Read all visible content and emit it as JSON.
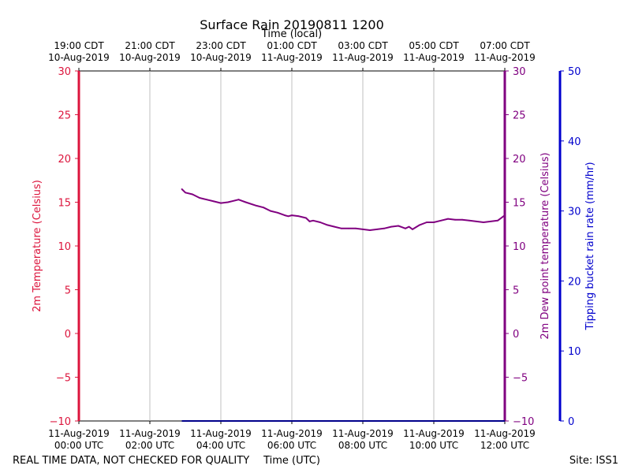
{
  "chart_data": {
    "type": "line",
    "title": "Surface Rain 20190811 1200",
    "top_axis_label": "Time (local)",
    "xlabel": "Time (UTC)",
    "ylabel_left": "2m Temperature (Celsius)",
    "ylabel_right1": "2m Dew point temperature (Celsius)",
    "ylabel_right2": "Tipping bucket rain rate (mm/hr)",
    "xlim_hours": [
      0,
      12
    ],
    "ylim_temp": [
      -10,
      30
    ],
    "ylim_rain": [
      0,
      50
    ],
    "temp_ticks": [
      "30",
      "25",
      "20",
      "15",
      "10",
      "5",
      "0",
      "−5",
      "−10"
    ],
    "rain_ticks": [
      "50",
      "40",
      "30",
      "20",
      "10",
      "0"
    ],
    "bottom_ticks": [
      {
        "line1": "11-Aug-2019",
        "line2": "00:00 UTC"
      },
      {
        "line1": "11-Aug-2019",
        "line2": "02:00 UTC"
      },
      {
        "line1": "11-Aug-2019",
        "line2": "04:00 UTC"
      },
      {
        "line1": "11-Aug-2019",
        "line2": "06:00 UTC"
      },
      {
        "line1": "11-Aug-2019",
        "line2": "08:00 UTC"
      },
      {
        "line1": "11-Aug-2019",
        "line2": "10:00 UTC"
      },
      {
        "line1": "11-Aug-2019",
        "line2": "12:00 UTC"
      }
    ],
    "top_ticks": [
      {
        "line1": "19:00 CDT",
        "line2": "10-Aug-2019"
      },
      {
        "line1": "21:00 CDT",
        "line2": "10-Aug-2019"
      },
      {
        "line1": "23:00 CDT",
        "line2": "10-Aug-2019"
      },
      {
        "line1": "01:00 CDT",
        "line2": "11-Aug-2019"
      },
      {
        "line1": "03:00 CDT",
        "line2": "11-Aug-2019"
      },
      {
        "line1": "05:00 CDT",
        "line2": "11-Aug-2019"
      },
      {
        "line1": "07:00 CDT",
        "line2": "11-Aug-2019"
      }
    ],
    "series": [
      {
        "name": "2m Dew point temperature",
        "color": "#800080",
        "x": [
          2.9,
          3.0,
          3.2,
          3.4,
          3.5,
          3.6,
          3.8,
          4.0,
          4.2,
          4.4,
          4.5,
          4.7,
          5.0,
          5.2,
          5.4,
          5.6,
          5.8,
          5.9,
          6.0,
          6.2,
          6.4,
          6.5,
          6.6,
          6.8,
          7.0,
          7.2,
          7.4,
          7.6,
          7.8,
          8.0,
          8.2,
          8.4,
          8.6,
          8.8,
          9.0,
          9.2,
          9.3,
          9.4,
          9.6,
          9.8,
          10.0,
          10.2,
          10.4,
          10.6,
          10.8,
          11.0,
          11.2,
          11.4,
          11.6,
          11.8,
          12.0
        ],
        "y": [
          16.5,
          16.1,
          15.9,
          15.5,
          15.4,
          15.3,
          15.1,
          14.9,
          15.0,
          15.2,
          15.3,
          15.0,
          14.6,
          14.4,
          14.0,
          13.8,
          13.5,
          13.4,
          13.5,
          13.4,
          13.2,
          12.8,
          12.9,
          12.7,
          12.4,
          12.2,
          12.0,
          12.0,
          12.0,
          11.9,
          11.8,
          11.9,
          12.0,
          12.2,
          12.3,
          12.0,
          12.2,
          11.9,
          12.4,
          12.7,
          12.7,
          12.9,
          13.1,
          13.0,
          13.0,
          12.9,
          12.8,
          12.7,
          12.8,
          12.9,
          13.5
        ]
      },
      {
        "name": "Tipping bucket rain rate",
        "color": "#00008b",
        "x": [
          2.9,
          12.0
        ],
        "y": [
          0,
          0
        ]
      }
    ]
  },
  "footer": {
    "left_note": "REAL TIME DATA, NOT CHECKED FOR QUALITY",
    "site": "Site: ISS1"
  }
}
